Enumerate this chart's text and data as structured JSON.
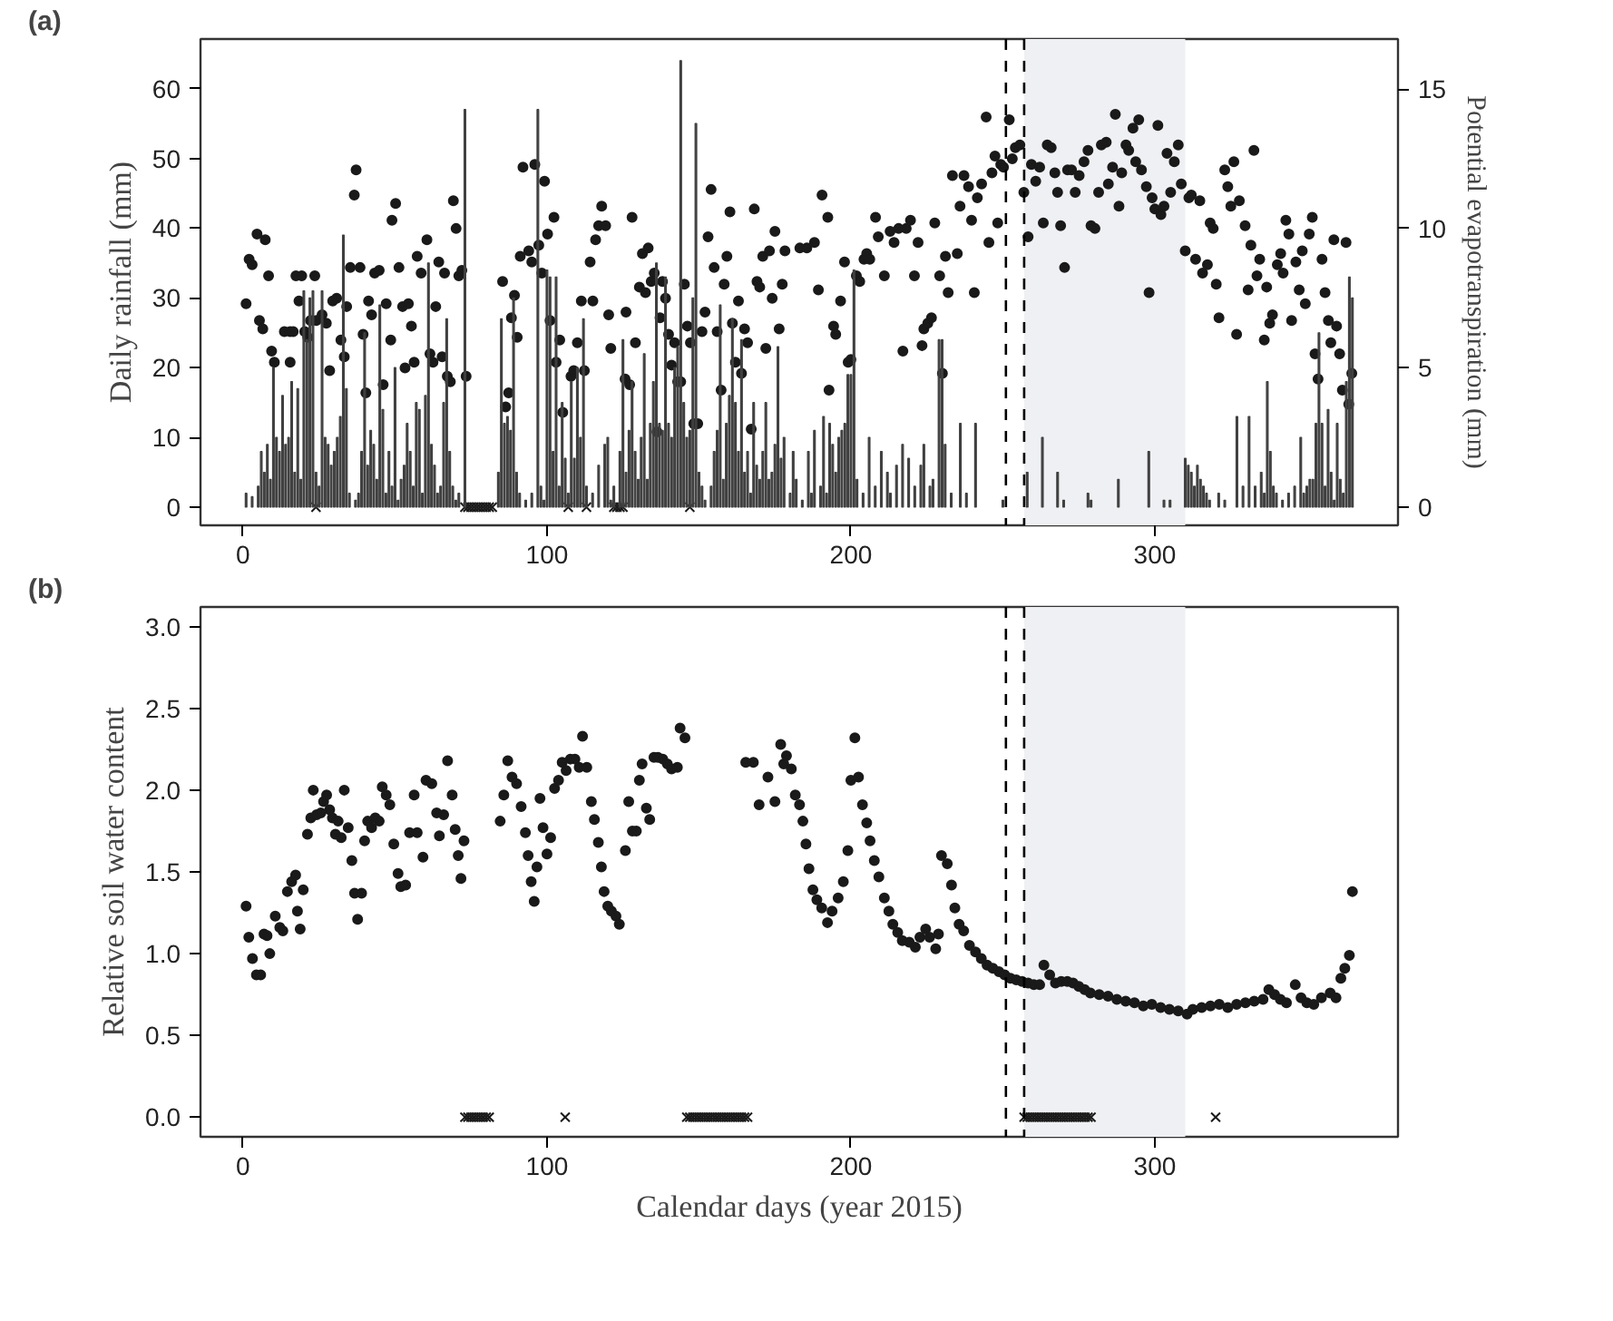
{
  "chart_data": [
    {
      "type": "bar",
      "annotations": [
        "(a)"
      ],
      "ylabel": "Daily rainfall (mm)",
      "y2label": "Potential evapotranspiration (mm)",
      "xlim": [
        -14,
        380
      ],
      "xticks": [
        0,
        100,
        200,
        300
      ],
      "ylim": [
        -2.6,
        67.1
      ],
      "yticks": [
        0,
        10,
        20,
        30,
        40,
        50,
        60
      ],
      "y2lim": [
        -0.65,
        16.8
      ],
      "y2ticks": [
        0,
        5,
        10,
        15
      ],
      "grid": false,
      "ref_lines": [
        {
          "axis": "x",
          "value": 251,
          "line_style": "dashed",
          "color": "#000000"
        },
        {
          "axis": "x",
          "value": 257,
          "line_style": "dashed",
          "color": "#000000"
        }
      ],
      "bands": [
        {
          "axis": "x",
          "from": 257,
          "to": 310,
          "color": "#eff0f3"
        }
      ],
      "series": [
        {
          "color": "#404040",
          "x": [
            1,
            3,
            5,
            6,
            7,
            8,
            9,
            10,
            11,
            12,
            13,
            14,
            15,
            16,
            17,
            18,
            19,
            20,
            21,
            22,
            23,
            24,
            25,
            26,
            27,
            28,
            29,
            30,
            31,
            32,
            33,
            34,
            35,
            37,
            38,
            39,
            40,
            41,
            42,
            43,
            44,
            45,
            46,
            47,
            48,
            49,
            50,
            51,
            52,
            53,
            54,
            55,
            56,
            57,
            58,
            59,
            60,
            61,
            62,
            63,
            64,
            65,
            66,
            67,
            68,
            69,
            70,
            71,
            73,
            84,
            85,
            86,
            87,
            88,
            89,
            90,
            91,
            93,
            95,
            97,
            98,
            99,
            100,
            101,
            102,
            103,
            104,
            105,
            106,
            107,
            108,
            109,
            110,
            111,
            112,
            113,
            115,
            117,
            119,
            120,
            121,
            122,
            124,
            125,
            126,
            127,
            128,
            129,
            130,
            131,
            132,
            133,
            134,
            135,
            136,
            137,
            138,
            139,
            140,
            141,
            142,
            143,
            144,
            145,
            146,
            147,
            148,
            149,
            150,
            151,
            152,
            154,
            155,
            156,
            157,
            158,
            159,
            160,
            161,
            162,
            163,
            164,
            165,
            166,
            167,
            168,
            169,
            170,
            171,
            172,
            173,
            174,
            175,
            176,
            177,
            178,
            180,
            181,
            182,
            184,
            186,
            187,
            188,
            190,
            191,
            192,
            193,
            194,
            195,
            196,
            197,
            198,
            199,
            200,
            201,
            202,
            204,
            206,
            208,
            210,
            212,
            213,
            215,
            217,
            219,
            221,
            223,
            224,
            226,
            227,
            229,
            230,
            231,
            233,
            236,
            238,
            241,
            250,
            258,
            263,
            268,
            270,
            278,
            279,
            288,
            298,
            303,
            305,
            310,
            311,
            312,
            313,
            314,
            315,
            316,
            317,
            318,
            321,
            323,
            327,
            329,
            331,
            333,
            335,
            336,
            337,
            338,
            339,
            340,
            342,
            344,
            346,
            348,
            349,
            350,
            351,
            352,
            353,
            354,
            355,
            356,
            357,
            358,
            359,
            360,
            361,
            362,
            363,
            364,
            365
          ],
          "values": [
            2,
            1.5,
            3,
            8,
            5,
            9,
            4,
            20,
            10,
            8,
            16,
            9,
            10,
            18,
            5,
            17,
            4,
            31,
            24,
            30,
            31,
            5,
            3,
            31,
            10,
            9,
            6,
            8,
            10,
            13,
            39,
            17,
            2,
            1,
            2,
            8,
            25,
            6,
            11,
            9,
            4,
            29,
            14,
            2,
            8,
            3,
            20,
            1,
            4,
            6,
            12,
            8,
            3,
            15,
            14,
            2,
            16,
            35,
            9,
            6,
            2,
            3,
            15,
            27,
            8,
            3,
            1,
            2,
            57,
            5,
            27,
            12,
            13,
            11,
            30,
            5,
            2,
            1,
            2,
            57,
            3,
            1,
            34,
            33,
            8,
            33,
            3,
            15,
            7,
            2,
            18,
            7,
            20,
            10,
            27,
            3,
            2,
            6,
            9,
            10,
            1,
            3,
            8,
            24,
            5,
            11,
            18,
            8,
            4,
            10,
            22,
            4,
            12,
            18,
            35,
            12,
            11,
            33,
            12,
            10,
            20,
            23,
            64,
            15,
            10,
            11,
            30,
            55,
            5,
            3,
            1,
            3,
            8,
            11,
            29,
            4,
            12,
            16,
            27,
            15,
            8,
            24,
            5,
            8,
            2,
            15,
            6,
            4,
            8,
            15,
            4,
            5,
            9,
            23,
            7,
            10,
            2,
            8,
            4,
            1,
            8,
            2,
            11,
            3,
            13,
            2,
            12,
            9,
            5,
            10,
            11,
            12,
            19,
            19,
            34,
            4,
            2,
            10,
            3,
            8,
            5,
            2,
            6,
            9,
            7,
            3,
            6,
            9,
            3,
            4,
            24,
            24,
            9,
            2,
            12,
            2,
            12,
            1,
            5,
            10,
            5,
            1,
            2,
            1,
            4,
            8,
            1,
            1,
            7,
            6,
            5,
            3,
            6,
            4,
            3,
            2,
            1,
            2,
            1,
            13,
            3,
            13,
            3,
            5,
            2,
            18,
            8,
            3,
            2,
            1,
            2,
            3,
            10,
            2,
            3,
            4,
            4,
            12,
            25,
            12,
            3,
            14,
            5,
            1,
            12,
            4,
            2,
            18,
            33,
            30
          ]
        },
        {
          "type": "scatter",
          "axis": "y2",
          "marker": "circle",
          "color": "#1a1a1a",
          "x": [
            1,
            2,
            3,
            4.6,
            7.3,
            5.4,
            6.5,
            8.4,
            9.4,
            10.3,
            13.6,
            15.5,
            16.5,
            15.5,
            17.4,
            19.3,
            18.4,
            20.3,
            21.3,
            22.2,
            23.6,
            24.1,
            26,
            27.4,
            28.5,
            29.5,
            30.8,
            32.2,
            34.1,
            33.3,
            35.3,
            36.6,
            37.2,
            38.5,
            39.5,
            40.4,
            41.3,
            42.3,
            43.3,
            44.8,
            46.1,
            47.1,
            48.6,
            49,
            50.2,
            51.3,
            52.5,
            53.3,
            54.4,
            55.4,
            56.3,
            57.3,
            58.6,
            60.5,
            61.5,
            62.5,
            63.4,
            64.4,
            65.5,
            66.3,
            67.2,
            68.2,
            69.2,
            70.1,
            71,
            72,
            73.4,
            85.4,
            86.4,
            87.4,
            88.3,
            89.3,
            90.2,
            91.2,
            92.1,
            94,
            95,
            96,
            97.3,
            98.3,
            99.2,
            100.2,
            101,
            102.3,
            103,
            104.2,
            105.2,
            107.9,
            108.8,
            110,
            111.3,
            112.3,
            114.2,
            115.1,
            116,
            117,
            118,
            119.3,
            120.3,
            121,
            125.7,
            126,
            127.2,
            128,
            129.1,
            130.4,
            131.4,
            132.4,
            133.3,
            134.3,
            135.3,
            136.2,
            137.2,
            138,
            139,
            140,
            141,
            142,
            143,
            144,
            145.2,
            146.2,
            147.2,
            148.3,
            149.6,
            151,
            152,
            153,
            154,
            155,
            156,
            157.3,
            158.3,
            159.2,
            160.2,
            161,
            162,
            163,
            164,
            165,
            166,
            167.2,
            168.2,
            169.1,
            170,
            171,
            172,
            173.2,
            174.1,
            175,
            176.4,
            177.4,
            178.3,
            183.2,
            185.5,
            188,
            189.3,
            190.5,
            192.4,
            192.8,
            194.3,
            195,
            196.6,
            197.9,
            199.1,
            200,
            201.8,
            202.9,
            204.3,
            205.2,
            206.2,
            208.1,
            209,
            211,
            212.9,
            214.2,
            215.7,
            217.1,
            218.2,
            219.6,
            220.9,
            222.1,
            223.4,
            224,
            225.3,
            226.5,
            227.6,
            229.2,
            230.1,
            231.1,
            232,
            233.4,
            235,
            235.9,
            237.2,
            238.7,
            239.7,
            240.6,
            241.6,
            243,
            244.5,
            245.4,
            246.4,
            247.4,
            248.3,
            249.3,
            250.2,
            252.1,
            253.1,
            254.1,
            255.6,
            256.9,
            258.3,
            259.4,
            260.8,
            262.1,
            263.3,
            264.6,
            265.9,
            267.1,
            268,
            269,
            270.3,
            271.3,
            272.6,
            273.8,
            275.1,
            276.7,
            278,
            279,
            280.3,
            281.5,
            282.4,
            284,
            284.7,
            286.1,
            287,
            288.2,
            289.1,
            290.5,
            291.4,
            292.8,
            293.7,
            294.7,
            295.6,
            297.2,
            298.1,
            299.1,
            300,
            301,
            302,
            303,
            304,
            305.2,
            306.4,
            307.7,
            308.7,
            310,
            311.2,
            312,
            313.4,
            314.8,
            315.7,
            317.3,
            318.2,
            319.2,
            320.2,
            321.1,
            323,
            324,
            325,
            326,
            326.9,
            327.8,
            329.7,
            330.7,
            331.6,
            332.6,
            333.6,
            334.5,
            336,
            336.8,
            337.8,
            338.7,
            340.3,
            341.4,
            342.2,
            343.1,
            344.1,
            345,
            346.4,
            347.5,
            348.5,
            349.5,
            350.8,
            351.8,
            352.7,
            353.7,
            355,
            356,
            357.1,
            357.9,
            358.9,
            359.8,
            360.8,
            361.7,
            362.9,
            363.8,
            364.8
          ],
          "values": [
            7.3,
            8.9,
            8.7,
            9.8,
            9.6,
            6.7,
            6.4,
            8.3,
            5.6,
            5.2,
            6.3,
            6.3,
            6.3,
            5.2,
            8.3,
            8.3,
            7.4,
            6.3,
            6.1,
            6.7,
            8.3,
            6.7,
            6.9,
            6.6,
            4.9,
            7.4,
            7.5,
            6.0,
            7.2,
            5.4,
            8.6,
            11.2,
            12.1,
            8.6,
            6.2,
            4.1,
            7.4,
            6.9,
            8.4,
            8.5,
            4.4,
            7.3,
            6.0,
            10.3,
            10.9,
            8.6,
            7.2,
            5.0,
            7.3,
            6.5,
            5.2,
            9.0,
            8.4,
            9.6,
            5.5,
            5.2,
            7.2,
            8.8,
            5.4,
            8.4,
            4.7,
            4.5,
            11.0,
            10.0,
            8.3,
            8.5,
            4.7,
            8.1,
            3.6,
            4.1,
            6.8,
            7.6,
            6.1,
            9.0,
            12.2,
            9.2,
            8.8,
            12.3,
            9.4,
            8.4,
            11.7,
            9.8,
            6.7,
            10.4,
            5.2,
            6.0,
            3.4,
            4.7,
            4.9,
            5.9,
            7.4,
            4.9,
            8.8,
            7.4,
            9.6,
            10.1,
            10.8,
            10.1,
            6.9,
            5.7,
            4.6,
            7.0,
            4.4,
            10.4,
            5.9,
            7.9,
            9.1,
            7.7,
            9.3,
            8.1,
            8.4,
            2.7,
            6.8,
            8.1,
            7.5,
            6.2,
            5.1,
            5.9,
            4.5,
            4.5,
            8.0,
            6.5,
            5.9,
            3.0,
            3.0,
            6.3,
            7.0,
            9.7,
            11.4,
            8.6,
            6.3,
            4.2,
            8.0,
            9.0,
            10.6,
            6.6,
            5.2,
            7.4,
            4.8,
            6.4,
            5.9,
            2.8,
            10.7,
            8.1,
            7.9,
            9.0,
            5.7,
            9.2,
            7.5,
            9.9,
            6.4,
            8.0,
            9.2,
            9.3,
            9.3,
            9.5,
            7.8,
            11.2,
            10.4,
            4.2,
            6.5,
            6.2,
            7.4,
            8.8,
            5.2,
            5.3,
            8.3,
            8.1,
            8.9,
            9.1,
            8.9,
            10.4,
            9.7,
            8.3,
            9.9,
            9.5,
            10.0,
            5.6,
            10.0,
            10.3,
            8.3,
            9.5,
            5.8,
            6.4,
            6.6,
            6.8,
            10.2,
            8.3,
            4.8,
            9.0,
            7.7,
            11.9,
            9.1,
            10.8,
            11.9,
            11.5,
            10.3,
            7.7,
            11.1,
            11.6,
            14.0,
            9.5,
            12.0,
            12.6,
            10.2,
            12.3,
            12.2,
            13.9,
            12.5,
            12.9,
            13.0,
            11.3,
            9.7,
            12.3,
            11.7,
            12.2,
            10.2,
            13.0,
            12.9,
            12.0,
            11.3,
            10.1,
            8.6,
            12.1,
            12.1,
            11.3,
            11.9,
            12.4,
            12.8,
            10.1,
            10.0,
            11.3,
            13.0,
            13.1,
            11.6,
            12.2,
            14.1,
            10.8,
            12.0,
            13.0,
            12.8,
            13.6,
            12.4,
            13.9,
            12.1,
            11.5,
            7.7,
            11.1,
            10.7,
            13.7,
            10.5,
            10.8,
            12.7,
            11.3,
            12.4,
            13.0,
            11.6,
            9.2,
            11.1,
            11.2,
            8.9,
            11.0,
            8.4,
            8.7,
            10.2,
            10.0,
            8.0,
            6.8,
            12.1,
            11.5,
            10.8,
            12.4,
            6.2,
            11.0,
            10.1,
            7.8,
            9.4,
            12.8,
            8.3,
            8.9,
            6.0,
            7.9,
            6.6,
            6.9,
            8.7,
            9.1,
            8.4,
            10.3,
            9.8,
            6.7,
            8.8,
            7.8,
            9.2,
            7.3,
            9.8,
            10.4,
            5.5,
            4.6,
            8.9,
            7.7,
            6.7,
            5.9,
            9.6,
            6.5,
            5.5,
            4.2,
            9.5,
            3.7,
            4.8
          ]
        },
        {
          "type": "scatter",
          "marker": "cross",
          "color": "#1a1a1a",
          "x": [
            24,
            73,
            74,
            75,
            76,
            77,
            78,
            79,
            80,
            81,
            82,
            107,
            113,
            122,
            123,
            124,
            125,
            147
          ],
          "values": [
            0,
            0,
            0,
            0,
            0,
            0,
            0,
            0,
            0,
            0,
            0,
            0,
            0,
            0,
            0,
            0,
            0,
            0
          ]
        }
      ]
    },
    {
      "type": "scatter",
      "annotations": [
        "(b)"
      ],
      "xlabel": "Calendar days (year 2015)",
      "ylabel": "Relative soil water content",
      "xlim": [
        -14,
        380
      ],
      "xticks": [
        0,
        100,
        200,
        300
      ],
      "ylim": [
        -0.12,
        3.12
      ],
      "yticks": [
        {
          "value": 0,
          "label": "0.0"
        },
        {
          "value": 0.5,
          "label": "0.5"
        },
        {
          "value": 1,
          "label": "1.0"
        },
        {
          "value": 1.5,
          "label": "1.5"
        },
        {
          "value": 2,
          "label": "2.0"
        },
        {
          "value": 2.5,
          "label": "2.5"
        },
        {
          "value": 3,
          "label": "3.0"
        }
      ],
      "grid": false,
      "ref_lines": [
        {
          "axis": "x",
          "value": 251,
          "line_style": "dashed",
          "color": "#000000"
        },
        {
          "axis": "x",
          "value": 257,
          "line_style": "dashed",
          "color": "#000000"
        }
      ],
      "bands": [
        {
          "axis": "x",
          "from": 257,
          "to": 310,
          "color": "#eff0f3"
        }
      ],
      "series": [
        {
          "marker": "circle",
          "color": "#1a1a1a",
          "x": [
            1,
            1.9,
            3.1,
            4.4,
            5.8,
            6.9,
            7.9,
            8.8,
            10.6,
            12.1,
            13.1,
            14.6,
            16,
            17.3,
            17.9,
            18.8,
            19.8,
            21.2,
            22.3,
            23.1,
            24.2,
            25.6,
            26.5,
            27.5,
            28.5,
            29.4,
            30.4,
            31.3,
            32.3,
            33.3,
            34.6,
            35.8,
            36.7,
            37.7,
            39,
            40,
            41,
            42.3,
            43.5,
            44.8,
            45.8,
            47.1,
            48.3,
            49.6,
            51,
            51.9,
            53.5,
            54.8,
            56.3,
            57.3,
            59.2,
            60.2,
            62.1,
            63.7,
            64.6,
            66,
            67.3,
            68.8,
            69.8,
            70.8,
            71.7,
            72.7,
            84.6,
            85.8,
            87.1,
            88.5,
            90,
            91.5,
            92.9,
            93.8,
            94.8,
            95.8,
            96.7,
            97.7,
            98.7,
            100,
            101.2,
            102.5,
            103.8,
            105,
            106.3,
            107.7,
            109.2,
            110.6,
            111.7,
            113.1,
            114.6,
            115.6,
            116.9,
            117.9,
            118.8,
            120,
            121.2,
            122.7,
            123.8,
            125.8,
            126.9,
            128.1,
            129.4,
            130.4,
            131.3,
            132.7,
            133.8,
            135.2,
            136.5,
            138.1,
            139.6,
            141,
            142.9,
            143.8,
            145.4,
            165.4,
            167.9,
            169.8,
            172.7,
            175,
            176.9,
            177.9,
            178.8,
            180.4,
            181.7,
            183.1,
            184.2,
            185.2,
            186.2,
            187.5,
            188.8,
            190.4,
            192.3,
            193.8,
            195.8,
            197.5,
            199,
            200,
            201.3,
            202.5,
            203.8,
            205.2,
            206.3,
            207.7,
            209.2,
            211,
            212.5,
            213.8,
            215.4,
            216.9,
            219.2,
            221.2,
            222.7,
            224.6,
            225.9,
            227.9,
            228.8,
            229.8,
            231.7,
            233.1,
            234.2,
            235.6,
            237.1,
            239,
            241,
            242.9,
            244.8,
            246.7,
            248.7,
            250.6,
            252.5,
            254.4,
            256.3,
            258.3,
            260.2,
            262.1,
            263.5,
            265.4,
            267.3,
            269.2,
            271.2,
            273.1,
            275,
            276.9,
            278.8,
            281.7,
            284.6,
            287.5,
            290.4,
            293.3,
            296.2,
            299,
            301.9,
            304.8,
            307.7,
            310.6,
            312.5,
            315.4,
            318.3,
            321.2,
            324,
            326.9,
            329.8,
            332.7,
            335.6,
            337.5,
            339.4,
            341.3,
            343.3,
            346.2,
            348.1,
            350,
            352.3,
            354.8,
            357.7,
            359.6,
            361.2,
            362.5,
            364,
            365
          ],
          "values": [
            1.29,
            1.1,
            0.97,
            0.87,
            0.87,
            1.12,
            1.11,
            1.0,
            1.23,
            1.16,
            1.14,
            1.38,
            1.44,
            1.48,
            1.26,
            1.15,
            1.39,
            1.73,
            1.83,
            2.0,
            1.85,
            1.86,
            1.93,
            1.97,
            1.88,
            1.83,
            1.73,
            1.81,
            1.71,
            2.0,
            1.77,
            1.57,
            1.37,
            1.21,
            1.37,
            1.69,
            1.81,
            1.77,
            1.83,
            1.81,
            2.02,
            1.97,
            1.91,
            1.67,
            1.49,
            1.41,
            1.42,
            1.74,
            1.97,
            1.74,
            1.59,
            2.06,
            2.04,
            1.86,
            1.72,
            1.85,
            2.18,
            1.97,
            1.76,
            1.6,
            1.46,
            1.69,
            1.81,
            1.97,
            2.18,
            2.08,
            2.04,
            1.9,
            1.74,
            1.6,
            1.44,
            1.32,
            1.53,
            1.95,
            1.77,
            1.61,
            1.71,
            2.01,
            2.06,
            2.17,
            2.12,
            2.19,
            2.19,
            2.14,
            2.33,
            2.14,
            1.93,
            1.82,
            1.68,
            1.53,
            1.38,
            1.29,
            1.26,
            1.23,
            1.18,
            1.63,
            1.93,
            1.75,
            1.75,
            2.06,
            2.16,
            1.89,
            1.82,
            2.2,
            2.2,
            2.19,
            2.16,
            2.13,
            2.14,
            2.38,
            2.32,
            2.17,
            2.17,
            1.91,
            2.08,
            1.93,
            2.28,
            2.16,
            2.21,
            2.13,
            1.97,
            1.91,
            1.81,
            1.67,
            1.52,
            1.39,
            1.33,
            1.28,
            1.19,
            1.26,
            1.34,
            1.44,
            1.63,
            2.06,
            2.32,
            2.08,
            1.91,
            1.8,
            1.69,
            1.57,
            1.47,
            1.34,
            1.26,
            1.18,
            1.13,
            1.08,
            1.07,
            1.04,
            1.1,
            1.15,
            1.1,
            1.03,
            1.12,
            1.6,
            1.55,
            1.42,
            1.28,
            1.18,
            1.14,
            1.05,
            1.01,
            0.97,
            0.93,
            0.91,
            0.89,
            0.87,
            0.85,
            0.84,
            0.83,
            0.82,
            0.81,
            0.81,
            0.93,
            0.87,
            0.82,
            0.83,
            0.83,
            0.82,
            0.8,
            0.78,
            0.76,
            0.75,
            0.74,
            0.72,
            0.71,
            0.7,
            0.68,
            0.69,
            0.67,
            0.66,
            0.65,
            0.63,
            0.66,
            0.67,
            0.68,
            0.69,
            0.67,
            0.69,
            0.7,
            0.71,
            0.72,
            0.78,
            0.75,
            0.72,
            0.7,
            0.81,
            0.73,
            0.7,
            0.69,
            0.73,
            0.76,
            0.73,
            0.85,
            0.91,
            0.99,
            1.38
          ]
        },
        {
          "type": "scatter",
          "marker": "cross",
          "color": "#1a1a1a",
          "x": [
            73,
            74,
            75,
            76,
            77,
            78,
            79,
            80,
            81,
            106,
            146,
            147,
            148,
            149,
            150,
            151,
            152,
            153,
            154,
            155,
            156,
            157,
            158,
            159,
            160,
            161,
            162,
            163,
            164,
            165,
            166,
            257,
            258,
            259,
            260,
            261,
            262,
            263,
            264,
            265,
            266,
            267,
            268,
            269,
            270,
            271,
            272,
            273,
            274,
            275,
            276,
            277,
            278,
            279,
            320
          ],
          "values": [
            0,
            0,
            0,
            0,
            0,
            0,
            0,
            0,
            0,
            0,
            0,
            0,
            0,
            0,
            0,
            0,
            0,
            0,
            0,
            0,
            0,
            0,
            0,
            0,
            0,
            0,
            0,
            0,
            0,
            0,
            0,
            0,
            0,
            0,
            0,
            0,
            0,
            0,
            0,
            0,
            0,
            0,
            0,
            0,
            0,
            0,
            0,
            0,
            0,
            0,
            0,
            0,
            0,
            0,
            0
          ]
        }
      ]
    }
  ]
}
